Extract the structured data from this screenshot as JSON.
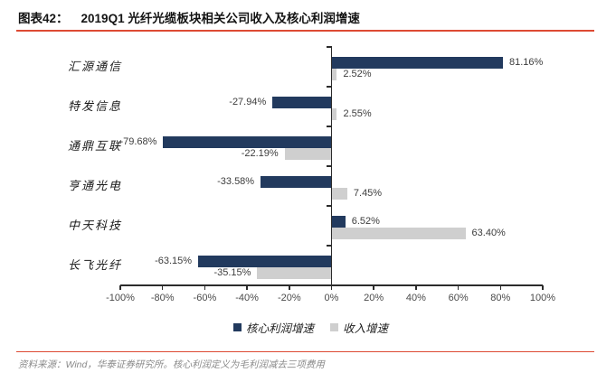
{
  "header": {
    "label": "图表42：",
    "title": "2019Q1 光纤光缆板块相关公司收入及核心利润增速"
  },
  "colors": {
    "accent_red": "#DD4A33",
    "bar_navy": "#223A5E",
    "bar_gray": "#CFCFCF",
    "axis": "#2b2b2b"
  },
  "chart_data": {
    "type": "bar",
    "orientation": "horizontal",
    "title": "2019Q1 光纤光缆板块相关公司收入及核心利润增速",
    "xlabel": "",
    "ylabel": "",
    "xlim": [
      -100,
      100
    ],
    "x_ticks": [
      "-100%",
      "-80%",
      "-60%",
      "-40%",
      "-20%",
      "0%",
      "20%",
      "40%",
      "60%",
      "80%",
      "100%"
    ],
    "grid": false,
    "legend_position": "bottom",
    "categories": [
      "汇源通信",
      "特发信息",
      "通鼎互联",
      "亨通光电",
      "中天科技",
      "长飞光纤"
    ],
    "series": [
      {
        "id": "core-profit-growth",
        "name": "核心利润增速",
        "color": "#223A5E",
        "values": [
          81.16,
          -27.94,
          -79.68,
          -33.58,
          6.52,
          -63.15
        ],
        "labels": [
          "81.16%",
          "-27.94%",
          "-79.68%",
          "-33.58%",
          "6.52%",
          "-63.15%"
        ]
      },
      {
        "id": "revenue-growth",
        "name": "收入增速",
        "color": "#CFCFCF",
        "values": [
          2.52,
          2.55,
          -22.19,
          7.45,
          63.4,
          -35.15
        ],
        "labels": [
          "2.52%",
          "2.55%",
          "-22.19%",
          "7.45%",
          "63.40%",
          "-35.15%"
        ]
      }
    ]
  },
  "footer": {
    "source": "资料来源：Wind，华泰证券研究所。核心利润定义为毛利润减去三项费用"
  }
}
